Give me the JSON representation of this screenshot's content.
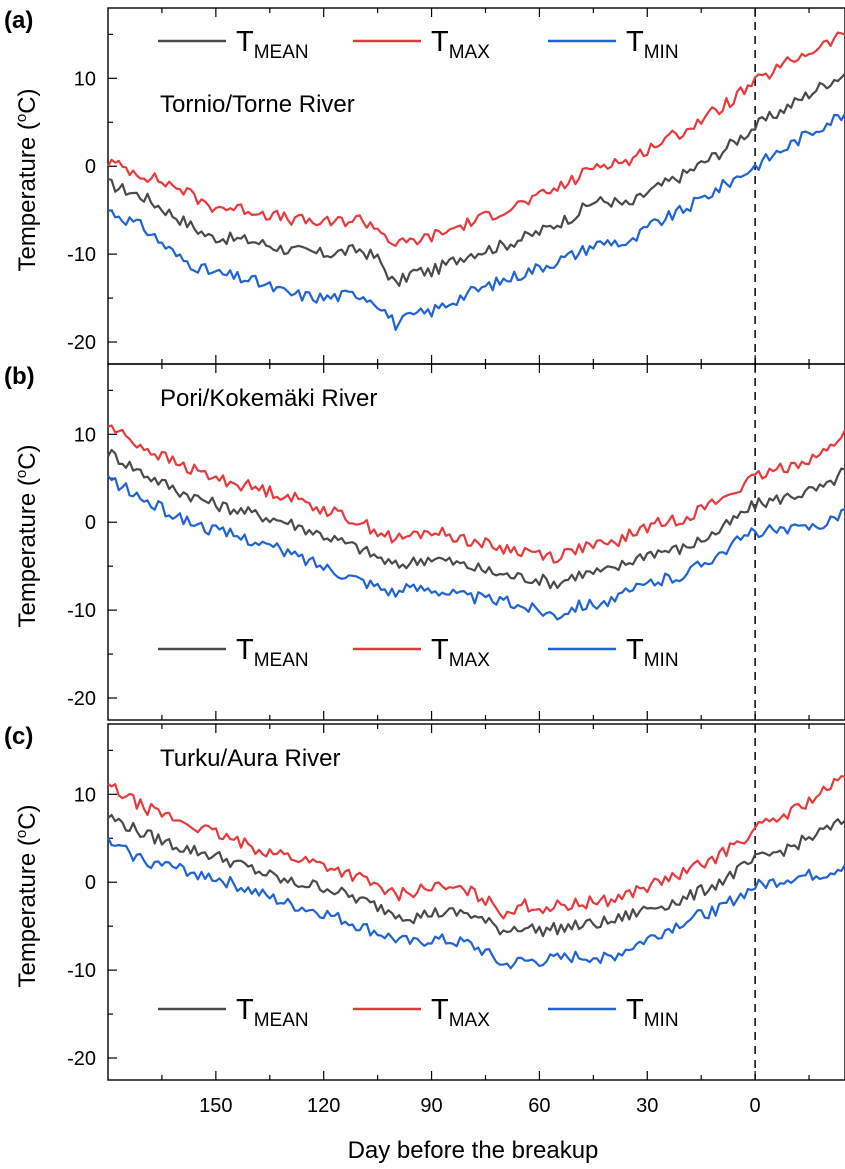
{
  "chart_data": {
    "type": "line",
    "shared_x": {
      "label": "Day before the breakup",
      "ticks": [
        150,
        120,
        90,
        60,
        30,
        0
      ],
      "range": [
        180,
        -25
      ]
    },
    "ylabel_main": "Temperature (",
    "ylabel_sup": "o",
    "ylabel_end": "C)",
    "y_ticks": [
      10,
      0,
      -10,
      -20
    ],
    "ylim": [
      -22.5,
      18
    ],
    "breakup_marker": 0,
    "legend_labels": [
      {
        "main": "T",
        "sub": "MEAN"
      },
      {
        "main": "T",
        "sub": "MAX"
      },
      {
        "main": "T",
        "sub": "MIN"
      }
    ],
    "series_colors": [
      "#4a4a4a",
      "#e8393c",
      "#1f63d4"
    ],
    "panels": [
      {
        "tag": "(a)",
        "title": "Tornio/Torne River",
        "legend_position": "top",
        "series": [
          {
            "label": "T_MEAN",
            "points": [
              [
                180,
                -2
              ],
              [
                170,
                -3.5
              ],
              [
                160,
                -6
              ],
              [
                152,
                -8
              ],
              [
                140,
                -8.5
              ],
              [
                130,
                -9.5
              ],
              [
                120,
                -10
              ],
              [
                110,
                -9.5
              ],
              [
                105,
                -10.5
              ],
              [
                100,
                -13.5
              ],
              [
                95,
                -12
              ],
              [
                90,
                -12
              ],
              [
                80,
                -10
              ],
              [
                70,
                -9
              ],
              [
                60,
                -7.5
              ],
              [
                50,
                -5.5
              ],
              [
                45,
                -4
              ],
              [
                40,
                -4
              ],
              [
                35,
                -4.5
              ],
              [
                30,
                -3
              ],
              [
                20,
                -1
              ],
              [
                10,
                1.5
              ],
              [
                0,
                4.5
              ],
              [
                -10,
                7
              ],
              [
                -20,
                9.5
              ],
              [
                -25,
                10.5
              ]
            ]
          },
          {
            "label": "T_MAX",
            "points": [
              [
                180,
                0.5
              ],
              [
                170,
                -1
              ],
              [
                160,
                -2.5
              ],
              [
                152,
                -4.5
              ],
              [
                140,
                -5
              ],
              [
                130,
                -6
              ],
              [
                120,
                -6.5
              ],
              [
                110,
                -6
              ],
              [
                105,
                -7
              ],
              [
                100,
                -9
              ],
              [
                95,
                -8.5
              ],
              [
                90,
                -8
              ],
              [
                80,
                -6.5
              ],
              [
                70,
                -5
              ],
              [
                60,
                -3.5
              ],
              [
                50,
                -1.5
              ],
              [
                45,
                0
              ],
              [
                40,
                0.5
              ],
              [
                35,
                0.5
              ],
              [
                30,
                2
              ],
              [
                20,
                4
              ],
              [
                10,
                6.5
              ],
              [
                0,
                9.5
              ],
              [
                -10,
                12
              ],
              [
                -20,
                14
              ],
              [
                -25,
                15
              ]
            ]
          },
          {
            "label": "T_MIN",
            "points": [
              [
                180,
                -5
              ],
              [
                170,
                -7
              ],
              [
                160,
                -10.5
              ],
              [
                152,
                -12
              ],
              [
                140,
                -13
              ],
              [
                130,
                -14.5
              ],
              [
                120,
                -15
              ],
              [
                110,
                -14.5
              ],
              [
                105,
                -15.5
              ],
              [
                100,
                -18
              ],
              [
                95,
                -17
              ],
              [
                90,
                -16.5
              ],
              [
                80,
                -14.5
              ],
              [
                70,
                -13
              ],
              [
                60,
                -11.5
              ],
              [
                50,
                -10
              ],
              [
                45,
                -9
              ],
              [
                40,
                -8.5
              ],
              [
                35,
                -9
              ],
              [
                30,
                -7
              ],
              [
                20,
                -5
              ],
              [
                10,
                -2.5
              ],
              [
                0,
                0
              ],
              [
                -10,
                2.5
              ],
              [
                -20,
                5
              ],
              [
                -25,
                6
              ]
            ]
          }
        ]
      },
      {
        "tag": "(b)",
        "title": "Pori/Kokemäki River",
        "legend_position": "bottom",
        "series": [
          {
            "label": "T_MEAN",
            "points": [
              [
                180,
                8
              ],
              [
                170,
                5.5
              ],
              [
                160,
                3.5
              ],
              [
                150,
                2
              ],
              [
                140,
                1
              ],
              [
                130,
                0
              ],
              [
                120,
                -1.5
              ],
              [
                110,
                -3
              ],
              [
                100,
                -5
              ],
              [
                95,
                -4.5
              ],
              [
                90,
                -4
              ],
              [
                80,
                -5
              ],
              [
                70,
                -6
              ],
              [
                60,
                -6.5
              ],
              [
                55,
                -7
              ],
              [
                50,
                -6
              ],
              [
                40,
                -5.5
              ],
              [
                35,
                -4.5
              ],
              [
                30,
                -3.5
              ],
              [
                20,
                -3
              ],
              [
                10,
                -1
              ],
              [
                0,
                2
              ],
              [
                -10,
                3
              ],
              [
                -20,
                4
              ],
              [
                -25,
                6
              ]
            ]
          },
          {
            "label": "T_MAX",
            "points": [
              [
                180,
                11
              ],
              [
                170,
                8.5
              ],
              [
                160,
                6.5
              ],
              [
                150,
                5
              ],
              [
                140,
                4
              ],
              [
                130,
                3
              ],
              [
                120,
                1.5
              ],
              [
                110,
                0
              ],
              [
                100,
                -2
              ],
              [
                95,
                -1.5
              ],
              [
                90,
                -1
              ],
              [
                80,
                -2
              ],
              [
                70,
                -3
              ],
              [
                60,
                -3.5
              ],
              [
                55,
                -4
              ],
              [
                50,
                -3
              ],
              [
                40,
                -2.5
              ],
              [
                35,
                -1.5
              ],
              [
                30,
                -0.5
              ],
              [
                20,
                0.5
              ],
              [
                10,
                2.5
              ],
              [
                0,
                5
              ],
              [
                -10,
                6.5
              ],
              [
                -20,
                8
              ],
              [
                -25,
                10.5
              ]
            ]
          },
          {
            "label": "T_MIN",
            "points": [
              [
                180,
                5
              ],
              [
                170,
                2.5
              ],
              [
                160,
                0.5
              ],
              [
                150,
                -1
              ],
              [
                140,
                -2
              ],
              [
                130,
                -3.5
              ],
              [
                120,
                -5
              ],
              [
                110,
                -6.5
              ],
              [
                100,
                -8
              ],
              [
                95,
                -7.5
              ],
              [
                90,
                -7.5
              ],
              [
                80,
                -8.5
              ],
              [
                70,
                -9
              ],
              [
                60,
                -10
              ],
              [
                55,
                -10.5
              ],
              [
                50,
                -9.5
              ],
              [
                40,
                -9
              ],
              [
                35,
                -8
              ],
              [
                30,
                -7
              ],
              [
                20,
                -6
              ],
              [
                10,
                -3.5
              ],
              [
                0,
                -1
              ],
              [
                -10,
                -1
              ],
              [
                -20,
                0
              ],
              [
                -25,
                1.5
              ]
            ]
          }
        ]
      },
      {
        "tag": "(c)",
        "title": "Turku/Aura River",
        "legend_position": "bottom",
        "series": [
          {
            "label": "T_MEAN",
            "points": [
              [
                180,
                7.5
              ],
              [
                170,
                5.5
              ],
              [
                160,
                4
              ],
              [
                150,
                3
              ],
              [
                140,
                1.5
              ],
              [
                130,
                0
              ],
              [
                120,
                -0.5
              ],
              [
                110,
                -2
              ],
              [
                100,
                -3.5
              ],
              [
                95,
                -4
              ],
              [
                90,
                -3.5
              ],
              [
                80,
                -3.5
              ],
              [
                75,
                -4.5
              ],
              [
                70,
                -5.5
              ],
              [
                65,
                -5
              ],
              [
                60,
                -5.5
              ],
              [
                50,
                -5
              ],
              [
                40,
                -4.5
              ],
              [
                30,
                -3
              ],
              [
                20,
                -2
              ],
              [
                10,
                0
              ],
              [
                0,
                2.5
              ],
              [
                -10,
                4
              ],
              [
                -20,
                6
              ],
              [
                -25,
                7
              ]
            ]
          },
          {
            "label": "T_MAX",
            "points": [
              [
                180,
                11
              ],
              [
                170,
                8.5
              ],
              [
                160,
                7
              ],
              [
                150,
                5.5
              ],
              [
                140,
                4
              ],
              [
                130,
                3
              ],
              [
                120,
                2
              ],
              [
                110,
                0.5
              ],
              [
                100,
                -1.5
              ],
              [
                95,
                -1
              ],
              [
                90,
                -0.5
              ],
              [
                80,
                -1
              ],
              [
                75,
                -2
              ],
              [
                70,
                -3.5
              ],
              [
                65,
                -2.5
              ],
              [
                60,
                -3
              ],
              [
                50,
                -2.5
              ],
              [
                40,
                -2
              ],
              [
                30,
                -0.5
              ],
              [
                20,
                1
              ],
              [
                10,
                3
              ],
              [
                0,
                6
              ],
              [
                -10,
                8
              ],
              [
                -20,
                10.5
              ],
              [
                -25,
                12
              ]
            ]
          },
          {
            "label": "T_MIN",
            "points": [
              [
                180,
                4.5
              ],
              [
                170,
                2.5
              ],
              [
                160,
                1.5
              ],
              [
                150,
                0.5
              ],
              [
                140,
                -1
              ],
              [
                130,
                -2.5
              ],
              [
                120,
                -3.5
              ],
              [
                110,
                -5
              ],
              [
                100,
                -6.5
              ],
              [
                95,
                -7
              ],
              [
                90,
                -6.5
              ],
              [
                80,
                -7
              ],
              [
                75,
                -8
              ],
              [
                70,
                -9.5
              ],
              [
                65,
                -9
              ],
              [
                60,
                -9
              ],
              [
                50,
                -8.5
              ],
              [
                40,
                -8.5
              ],
              [
                30,
                -6.5
              ],
              [
                20,
                -4.5
              ],
              [
                10,
                -3
              ],
              [
                0,
                -0.5
              ],
              [
                -10,
                0.5
              ],
              [
                -20,
                1
              ],
              [
                -25,
                2
              ]
            ]
          }
        ]
      }
    ]
  }
}
